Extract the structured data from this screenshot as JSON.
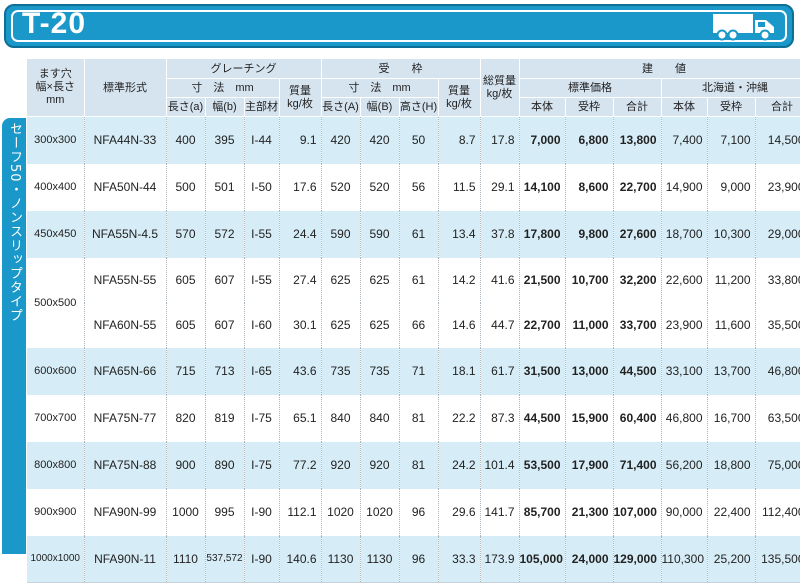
{
  "banner": {
    "title": "T-20",
    "icon": "truck-icon"
  },
  "side_label": "セーフ50・ノンスリップタイプ",
  "headers": {
    "hole": "ます穴\n幅×長さ\nmm",
    "model": "標準形式",
    "grating": "グレーチング",
    "frame": "受　　枠",
    "dims_mm": "寸　法　mm",
    "weight": "質量\nkg/枚",
    "length_a": "長さ(a)",
    "width_b": "幅(b)",
    "main": "主部材",
    "length_A": "長さ(A)",
    "width_B": "幅(B)",
    "height_H": "高さ(H)",
    "total_weight": "総質量\nkg/枚",
    "price": "建　　値",
    "standard_price": "標準価格",
    "hokkaido": "北海道・沖縄",
    "body": "本体",
    "frame_price": "受枠",
    "total": "合計"
  },
  "rows": [
    {
      "hole": "300x300",
      "model": "NFA44N-33",
      "a": "400",
      "b": "395",
      "main": "I-44",
      "gw": "9.1",
      "A": "420",
      "B": "420",
      "H": "50",
      "fw": "8.7",
      "tw": "17.8",
      "p1": "7,000",
      "p2": "6,800",
      "p3": "13,800",
      "h1": "7,400",
      "h2": "7,100",
      "h3": "14,500"
    },
    {
      "hole": "400x400",
      "model": "NFA50N-44",
      "a": "500",
      "b": "501",
      "main": "I-50",
      "gw": "17.6",
      "A": "520",
      "B": "520",
      "H": "56",
      "fw": "11.5",
      "tw": "29.1",
      "p1": "14,100",
      "p2": "8,600",
      "p3": "22,700",
      "h1": "14,900",
      "h2": "9,000",
      "h3": "23,900"
    },
    {
      "hole": "450x450",
      "model": "NFA55N-4.5",
      "a": "570",
      "b": "572",
      "main": "I-55",
      "gw": "24.4",
      "A": "590",
      "B": "590",
      "H": "61",
      "fw": "13.4",
      "tw": "37.8",
      "p1": "17,800",
      "p2": "9,800",
      "p3": "27,600",
      "h1": "18,700",
      "h2": "10,300",
      "h3": "29,000"
    },
    {
      "hole": "500x500",
      "model": "NFA55N-55",
      "a": "605",
      "b": "607",
      "main": "I-55",
      "gw": "27.4",
      "A": "625",
      "B": "625",
      "H": "61",
      "fw": "14.2",
      "tw": "41.6",
      "p1": "21,500",
      "p2": "10,700",
      "p3": "32,200",
      "h1": "22,600",
      "h2": "11,200",
      "h3": "33,800"
    },
    {
      "hole": "",
      "model": "NFA60N-55",
      "a": "605",
      "b": "607",
      "main": "I-60",
      "gw": "30.1",
      "A": "625",
      "B": "625",
      "H": "66",
      "fw": "14.6",
      "tw": "44.7",
      "p1": "22,700",
      "p2": "11,000",
      "p3": "33,700",
      "h1": "23,900",
      "h2": "11,600",
      "h3": "35,500"
    },
    {
      "hole": "600x600",
      "model": "NFA65N-66",
      "a": "715",
      "b": "713",
      "main": "I-65",
      "gw": "43.6",
      "A": "735",
      "B": "735",
      "H": "71",
      "fw": "18.1",
      "tw": "61.7",
      "p1": "31,500",
      "p2": "13,000",
      "p3": "44,500",
      "h1": "33,100",
      "h2": "13,700",
      "h3": "46,800"
    },
    {
      "hole": "700x700",
      "model": "NFA75N-77",
      "a": "820",
      "b": "819",
      "main": "I-75",
      "gw": "65.1",
      "A": "840",
      "B": "840",
      "H": "81",
      "fw": "22.2",
      "tw": "87.3",
      "p1": "44,500",
      "p2": "15,900",
      "p3": "60,400",
      "h1": "46,800",
      "h2": "16,700",
      "h3": "63,500"
    },
    {
      "hole": "800x800",
      "model": "NFA75N-88",
      "a": "900",
      "b": "890",
      "main": "I-75",
      "gw": "77.2",
      "A": "920",
      "B": "920",
      "H": "81",
      "fw": "24.2",
      "tw": "101.4",
      "p1": "53,500",
      "p2": "17,900",
      "p3": "71,400",
      "h1": "56,200",
      "h2": "18,800",
      "h3": "75,000"
    },
    {
      "hole": "900x900",
      "model": "NFA90N-99",
      "a": "1000",
      "b": "995",
      "main": "I-90",
      "gw": "112.1",
      "A": "1020",
      "B": "1020",
      "H": "96",
      "fw": "29.6",
      "tw": "141.7",
      "p1": "85,700",
      "p2": "21,300",
      "p3": "107,000",
      "h1": "90,000",
      "h2": "22,400",
      "h3": "112,400"
    },
    {
      "hole": "1000x1000",
      "model": "NFA90N-11",
      "a": "1110",
      "b": "537,572",
      "main": "I-90",
      "gw": "140.6",
      "A": "1130",
      "B": "1130",
      "H": "96",
      "fw": "33.3",
      "tw": "173.9",
      "p1": "105,000",
      "p2": "24,000",
      "p3": "129,000",
      "h1": "110,300",
      "h2": "25,200",
      "h3": "135,500"
    }
  ],
  "colors": {
    "accent": "#1a98c9",
    "header_bg": "#d6e4f0",
    "row_shade": "#d6ecf6"
  }
}
